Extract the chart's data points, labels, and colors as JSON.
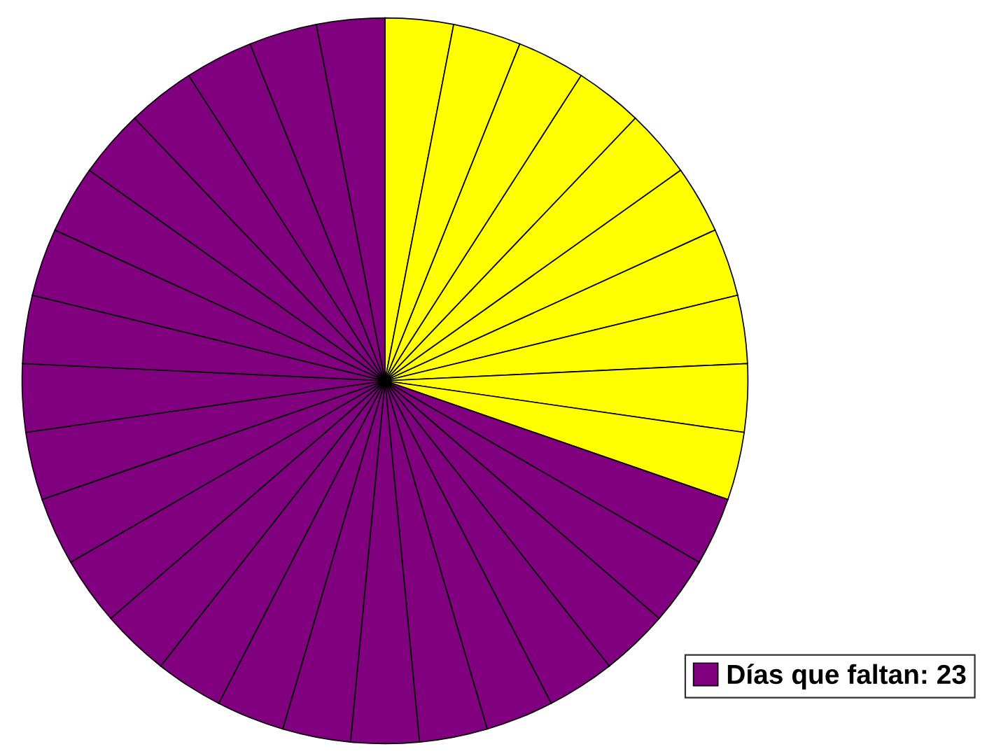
{
  "chart_data": {
    "type": "pie",
    "categories": [
      null,
      null,
      null,
      null,
      null,
      null,
      null,
      null,
      null,
      null,
      "Días que faltan: 23",
      null,
      null,
      null,
      null,
      null,
      null,
      null,
      null,
      null,
      null,
      null,
      null,
      null,
      null,
      null,
      null,
      null,
      null,
      null,
      null,
      null,
      null
    ],
    "values": [
      3.03,
      3.03,
      3.03,
      3.03,
      3.03,
      3.03,
      3.03,
      3.03,
      3.03,
      3.03,
      3.03,
      3.03,
      3.03,
      3.03,
      3.03,
      3.03,
      3.03,
      3.03,
      3.03,
      3.03,
      3.03,
      3.03,
      3.03,
      3.03,
      3.03,
      3.03,
      3.03,
      3.03,
      3.03,
      3.03,
      3.03,
      3.03,
      3.03
    ],
    "colors": [
      "#ffff00",
      "#ffff00",
      "#ffff00",
      "#ffff00",
      "#ffff00",
      "#ffff00",
      "#ffff00",
      "#ffff00",
      "#ffff00",
      "#ffff00",
      "#800080",
      "#800080",
      "#800080",
      "#800080",
      "#800080",
      "#800080",
      "#800080",
      "#800080",
      "#800080",
      "#800080",
      "#800080",
      "#800080",
      "#800080",
      "#800080",
      "#800080",
      "#800080",
      "#800080",
      "#800080",
      "#800080",
      "#800080",
      "#800080",
      "#800080",
      "#800080"
    ],
    "legend": "bottom right"
  }
}
